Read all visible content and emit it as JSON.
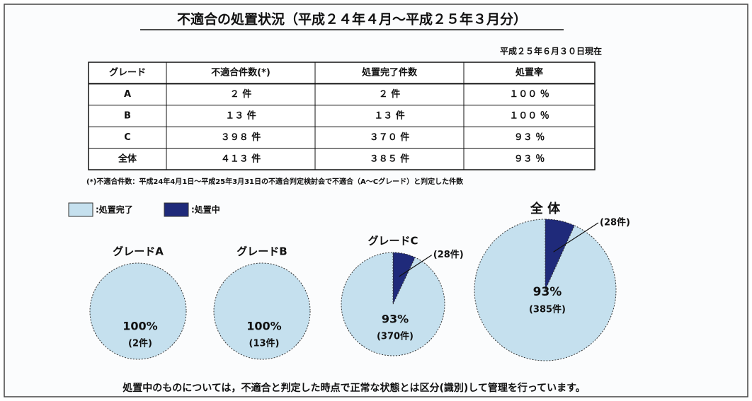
{
  "title": "不適合の処置状況（平成２４年４月～平成２５年３月分）",
  "date": "平成２５年６月３０日現在",
  "table": {
    "header": [
      "グレード",
      "不適合件数(*)",
      "処置完了件数",
      "処置率"
    ],
    "rows": [
      [
        "A",
        "２ 件",
        "２ 件",
        "１００ ％"
      ],
      [
        "B",
        "１３ 件",
        "１３ 件",
        "１００ ％"
      ],
      [
        "C",
        "３９８ 件",
        "３７０ 件",
        "９３ ％"
      ],
      [
        "全体",
        "４１３ 件",
        "３８５ 件",
        "９３ ％"
      ]
    ]
  },
  "footnote": "(*)不適合件数：平成24年4月1日～平成25年3月31日の不適合判定検討会で不適合（A～Cグレード）と判定した件数",
  "legend": [
    ":処置完了",
    ":処置中"
  ],
  "colors": [
    "#c5e0ee",
    "#1f2a7a"
  ],
  "chart_data": [
    {
      "type": "pie",
      "title": "グレードA",
      "values": [
        2,
        0
      ],
      "value_labels": [
        "(2件)",
        null
      ],
      "percent_label": "100%"
    },
    {
      "type": "pie",
      "title": "グレードB",
      "values": [
        13,
        0
      ],
      "value_labels": [
        "(13件)",
        null
      ],
      "percent_label": "100%"
    },
    {
      "type": "pie",
      "title": "グレードC",
      "values": [
        370,
        28
      ],
      "value_labels": [
        "(370件)",
        "(28件)"
      ],
      "percent_label": "93%"
    },
    {
      "type": "pie",
      "title": "全 体",
      "values": [
        385,
        28
      ],
      "value_labels": [
        "(385件)",
        "(28件)"
      ],
      "percent_label": "93%"
    }
  ],
  "note": "処置中のものについては，不適合と判定した時点で正常な状態とは区分(識別)して管理を行っています。"
}
